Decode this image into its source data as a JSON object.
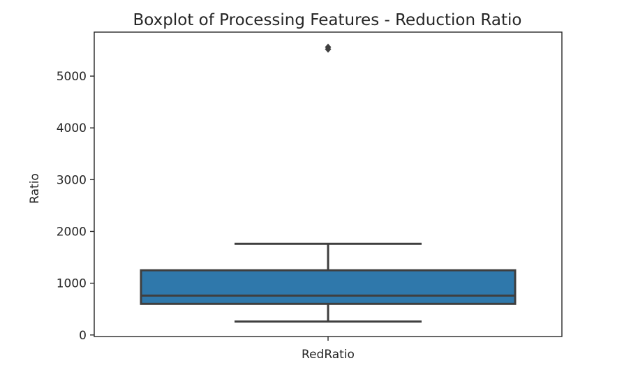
{
  "chart_data": {
    "type": "box",
    "title": "Boxplot of Processing Features - Reduction Ratio",
    "xlabel": "",
    "ylabel": "Ratio",
    "categories": [
      "RedRatio"
    ],
    "ylim": [
      -30,
      5850
    ],
    "yticks": [
      0,
      1000,
      2000,
      3000,
      4000,
      5000
    ],
    "grid": false,
    "box_color": "#2f78ab",
    "line_color": "#3f3f3f",
    "boxes": [
      {
        "name": "RedRatio",
        "whisker_low": 260,
        "q1": 600,
        "median": 760,
        "q3": 1250,
        "whisker_high": 1760,
        "outliers": [
          5520,
          5560
        ]
      }
    ]
  }
}
